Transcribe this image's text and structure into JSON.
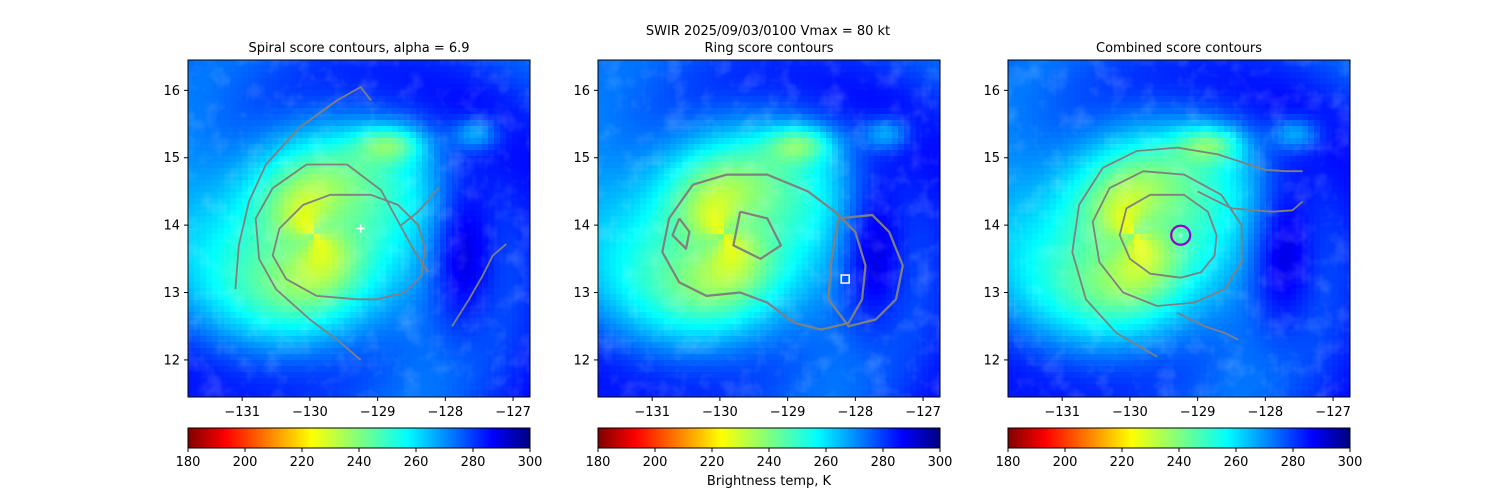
{
  "figure": {
    "suptitle_line1": "SWIR  2025/09/03/0100    Vmax = 80 kt",
    "colorbar_label": "Brightness temp, K"
  },
  "colors": {
    "contour": "#808080",
    "cross_marker": "#ffffff",
    "square_marker": "#ffffff",
    "circle_marker": "#9400d3"
  },
  "chart_data": [
    {
      "type": "heatmap",
      "title": "Spiral score contours, alpha =  6.9",
      "field": "Brightness temp, K",
      "colormap": "jet_r",
      "clim": [
        180,
        300
      ],
      "xlim": [
        -131.8,
        -126.75
      ],
      "ylim": [
        11.45,
        16.45
      ],
      "xticks": [
        -131,
        -130,
        -129,
        -128,
        -127
      ],
      "yticks": [
        12,
        13,
        14,
        15,
        16
      ],
      "colorbar_ticks": [
        180,
        200,
        220,
        240,
        260,
        280,
        300
      ],
      "storm_center": [
        -129.95,
        13.85
      ],
      "marker": {
        "shape": "cross",
        "x": -129.25,
        "y": 13.95
      },
      "contours": [
        [
          [
            -129.3,
            12.9
          ],
          [
            -129.0,
            12.9
          ],
          [
            -128.6,
            13.0
          ],
          [
            -128.35,
            13.25
          ],
          [
            -128.3,
            13.65
          ],
          [
            -128.4,
            14.0
          ],
          [
            -128.7,
            14.3
          ],
          [
            -129.1,
            14.45
          ],
          [
            -129.7,
            14.45
          ],
          [
            -130.1,
            14.3
          ],
          [
            -130.45,
            13.95
          ],
          [
            -130.55,
            13.55
          ],
          [
            -130.35,
            13.2
          ],
          [
            -129.9,
            12.95
          ],
          [
            -129.3,
            12.9
          ]
        ],
        [
          [
            -128.25,
            13.3
          ],
          [
            -128.45,
            13.6
          ],
          [
            -128.75,
            14.15
          ],
          [
            -128.95,
            14.52
          ],
          [
            -129.45,
            14.9
          ],
          [
            -130.05,
            14.9
          ],
          [
            -130.55,
            14.55
          ],
          [
            -130.8,
            14.1
          ],
          [
            -130.75,
            13.5
          ],
          [
            -130.5,
            13.05
          ],
          [
            -130.0,
            12.6
          ],
          [
            -129.6,
            12.3
          ],
          [
            -129.25,
            12.0
          ]
        ],
        [
          [
            -128.1,
            14.55
          ],
          [
            -128.4,
            14.2
          ],
          [
            -128.65,
            14.0
          ]
        ],
        [
          [
            -127.9,
            12.5
          ],
          [
            -127.65,
            12.9
          ],
          [
            -127.45,
            13.25
          ],
          [
            -127.3,
            13.55
          ],
          [
            -127.1,
            13.72
          ]
        ],
        [
          [
            -131.1,
            13.05
          ],
          [
            -131.05,
            13.7
          ],
          [
            -130.9,
            14.35
          ],
          [
            -130.65,
            14.9
          ],
          [
            -130.15,
            15.45
          ],
          [
            -129.6,
            15.85
          ],
          [
            -129.25,
            16.05
          ],
          [
            -129.1,
            15.85
          ]
        ]
      ]
    },
    {
      "type": "heatmap",
      "title": "Ring score contours",
      "field": "Brightness temp, K",
      "colormap": "jet_r",
      "clim": [
        180,
        300
      ],
      "xlim": [
        -131.8,
        -126.75
      ],
      "ylim": [
        11.45,
        16.45
      ],
      "xticks": [
        -131,
        -130,
        -129,
        -128,
        -127
      ],
      "yticks": [
        12,
        13,
        14,
        15,
        16
      ],
      "colorbar_ticks": [
        180,
        200,
        220,
        240,
        260,
        280,
        300
      ],
      "storm_center": [
        -129.95,
        13.85
      ],
      "marker": {
        "shape": "square",
        "x": -128.15,
        "y": 13.2
      },
      "contours": [
        [
          [
            -130.4,
            14.6
          ],
          [
            -129.9,
            14.75
          ],
          [
            -129.3,
            14.75
          ],
          [
            -128.7,
            14.5
          ],
          [
            -128.3,
            14.2
          ],
          [
            -128.0,
            13.9
          ],
          [
            -127.85,
            13.4
          ],
          [
            -127.9,
            12.9
          ],
          [
            -128.1,
            12.55
          ],
          [
            -128.5,
            12.45
          ],
          [
            -128.9,
            12.55
          ],
          [
            -129.3,
            12.85
          ],
          [
            -129.7,
            13.0
          ],
          [
            -130.2,
            12.95
          ],
          [
            -130.6,
            13.15
          ],
          [
            -130.85,
            13.6
          ],
          [
            -130.75,
            14.1
          ],
          [
            -130.4,
            14.6
          ]
        ],
        [
          [
            -128.25,
            14.1
          ],
          [
            -127.75,
            14.15
          ],
          [
            -127.5,
            13.9
          ],
          [
            -127.3,
            13.4
          ],
          [
            -127.4,
            12.9
          ],
          [
            -127.7,
            12.6
          ],
          [
            -128.1,
            12.5
          ],
          [
            -128.4,
            12.9
          ],
          [
            -128.35,
            13.5
          ],
          [
            -128.25,
            14.1
          ]
        ],
        [
          [
            -129.7,
            14.2
          ],
          [
            -129.3,
            14.1
          ],
          [
            -129.1,
            13.7
          ],
          [
            -129.4,
            13.5
          ],
          [
            -129.8,
            13.7
          ],
          [
            -129.7,
            14.2
          ]
        ],
        [
          [
            -130.6,
            14.1
          ],
          [
            -130.45,
            13.9
          ],
          [
            -130.5,
            13.65
          ],
          [
            -130.7,
            13.85
          ],
          [
            -130.6,
            14.1
          ]
        ]
      ]
    },
    {
      "type": "heatmap",
      "title": "Combined score contours",
      "field": "Brightness temp, K",
      "colormap": "jet_r",
      "clim": [
        180,
        300
      ],
      "xlim": [
        -131.8,
        -126.75
      ],
      "ylim": [
        11.45,
        16.45
      ],
      "xticks": [
        -131,
        -130,
        -129,
        -128,
        -127
      ],
      "yticks": [
        12,
        13,
        14,
        15,
        16
      ],
      "colorbar_ticks": [
        180,
        200,
        220,
        240,
        260,
        280,
        300
      ],
      "storm_center": [
        -129.95,
        13.85
      ],
      "marker": {
        "shape": "circle",
        "x": -129.25,
        "y": 13.85
      },
      "contours": [
        [
          [
            -129.25,
            13.22
          ],
          [
            -128.95,
            13.3
          ],
          [
            -128.75,
            13.55
          ],
          [
            -128.72,
            13.85
          ],
          [
            -128.85,
            14.2
          ],
          [
            -129.2,
            14.45
          ],
          [
            -129.7,
            14.45
          ],
          [
            -130.05,
            14.25
          ],
          [
            -130.15,
            13.85
          ],
          [
            -130.0,
            13.5
          ],
          [
            -129.7,
            13.28
          ],
          [
            -129.25,
            13.22
          ]
        ],
        [
          [
            -129.05,
            12.85
          ],
          [
            -128.6,
            13.05
          ],
          [
            -128.35,
            13.45
          ],
          [
            -128.35,
            14.0
          ],
          [
            -128.65,
            14.45
          ],
          [
            -129.2,
            14.75
          ],
          [
            -129.8,
            14.8
          ],
          [
            -130.3,
            14.55
          ],
          [
            -130.55,
            14.05
          ],
          [
            -130.45,
            13.45
          ],
          [
            -130.1,
            13.0
          ],
          [
            -129.6,
            12.8
          ],
          [
            -129.05,
            12.85
          ]
        ],
        [
          [
            -129.3,
            12.7
          ],
          [
            -128.9,
            12.5
          ],
          [
            -128.6,
            12.4
          ],
          [
            -128.4,
            12.3
          ]
        ],
        [
          [
            -129.0,
            14.5
          ],
          [
            -128.5,
            14.25
          ],
          [
            -127.9,
            14.2
          ],
          [
            -127.6,
            14.22
          ],
          [
            -127.45,
            14.35
          ]
        ],
        [
          [
            -129.6,
            12.05
          ],
          [
            -130.2,
            12.4
          ],
          [
            -130.65,
            12.9
          ],
          [
            -130.85,
            13.6
          ],
          [
            -130.75,
            14.3
          ],
          [
            -130.4,
            14.85
          ],
          [
            -129.9,
            15.1
          ],
          [
            -129.3,
            15.15
          ],
          [
            -128.7,
            15.05
          ],
          [
            -128.0,
            14.82
          ],
          [
            -127.7,
            14.8
          ],
          [
            -127.45,
            14.8
          ]
        ]
      ]
    }
  ]
}
